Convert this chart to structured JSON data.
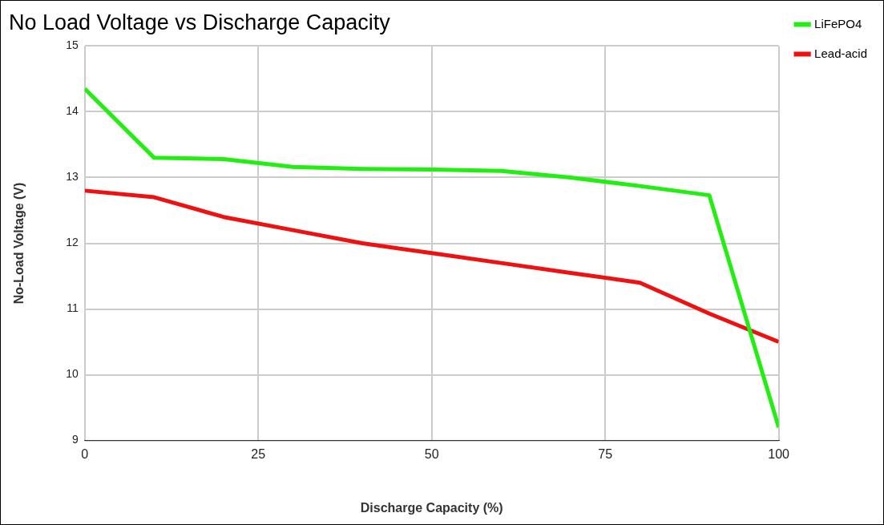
{
  "chart_data": {
    "type": "line",
    "title": "No Load Voltage vs Discharge Capacity",
    "xlabel": "Discharge Capacity (%)",
    "ylabel": "No-Load Voltage (V)",
    "x": [
      0,
      10,
      20,
      30,
      40,
      50,
      60,
      70,
      80,
      90,
      100
    ],
    "series": [
      {
        "name": "LiFePO4",
        "color": "#22ee11",
        "values": [
          14.35,
          13.3,
          13.28,
          13.16,
          13.13,
          13.12,
          13.1,
          13.0,
          12.87,
          12.73,
          9.2
        ]
      },
      {
        "name": "Lead-acid",
        "color": "#ee1111",
        "values": [
          12.8,
          12.7,
          12.4,
          12.2,
          12.0,
          11.85,
          11.7,
          11.55,
          11.4,
          10.93,
          10.5
        ]
      }
    ],
    "xlim": [
      0,
      100
    ],
    "xticks": [
      0,
      25,
      50,
      75,
      100
    ],
    "ylim": [
      9,
      15
    ],
    "yticks": [
      9,
      10,
      11,
      12,
      13,
      14,
      15
    ],
    "grid": true,
    "legend": "top right",
    "marker": "none",
    "line_style": "solid"
  }
}
